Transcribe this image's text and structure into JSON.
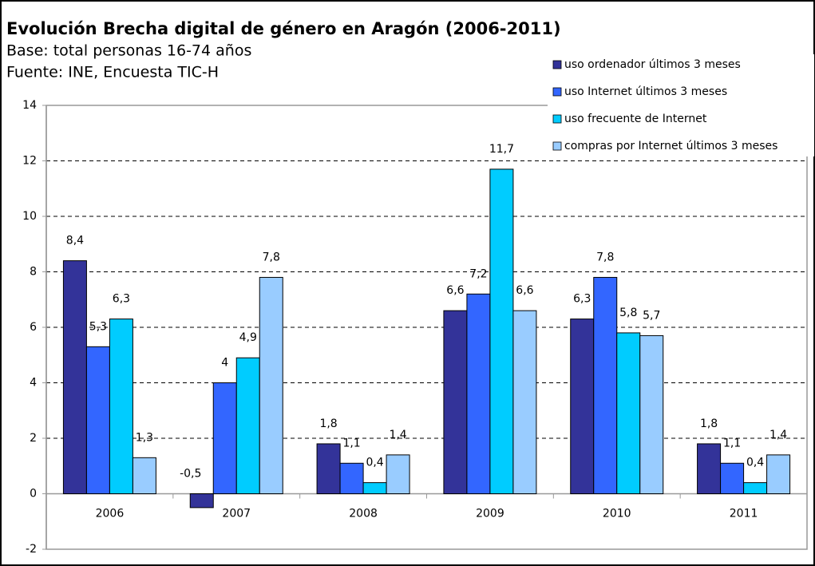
{
  "chart_data": {
    "type": "bar",
    "title": "Evolución Brecha digital de género en Aragón (2006-2011)",
    "subtitle": "Base: total personas 16-74 años",
    "source": "Fuente: INE, Encuesta TIC-H",
    "categories": [
      "2006",
      "2007",
      "2008",
      "2009",
      "2010",
      "2011"
    ],
    "series": [
      {
        "name": "uso ordenador últimos 3 meses",
        "color": "#333399",
        "values": [
          8.4,
          -0.5,
          1.8,
          6.6,
          6.3,
          1.8
        ],
        "value_labels": [
          "8,4",
          "-0,5",
          "1,8",
          "6,6",
          "6,3",
          "1,8"
        ]
      },
      {
        "name": "uso Internet últimos 3 meses",
        "color": "#3366ff",
        "values": [
          5.3,
          4,
          1.1,
          7.2,
          7.8,
          1.1
        ],
        "value_labels": [
          "5,3",
          "4",
          "1,1",
          "7,2",
          "7,8",
          "1,1"
        ]
      },
      {
        "name": "uso frecuente de Internet",
        "color": "#00ccff",
        "values": [
          6.3,
          4.9,
          0.4,
          11.7,
          5.8,
          0.4
        ],
        "value_labels": [
          "6,3",
          "4,9",
          "0,4",
          "11,7",
          "5,8",
          "0,4"
        ]
      },
      {
        "name": "compras por Internet últimos 3 meses",
        "color": "#99ccff",
        "values": [
          1.3,
          7.8,
          1.4,
          6.6,
          5.7,
          1.4
        ],
        "value_labels": [
          "1,3",
          "7,8",
          "1,4",
          "6,6",
          "5,7",
          "1,4"
        ]
      }
    ],
    "ylim": [
      -2,
      14
    ],
    "yticks": [
      -2,
      0,
      2,
      4,
      6,
      8,
      10,
      12,
      14
    ],
    "grid": true,
    "legend": "top-right"
  }
}
